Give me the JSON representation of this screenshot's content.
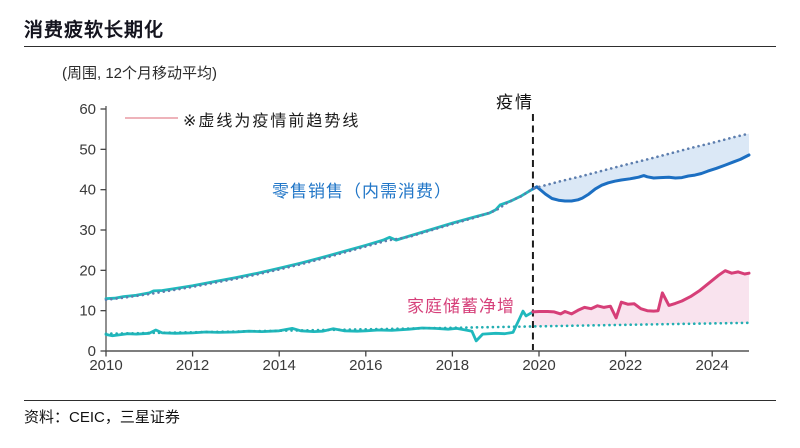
{
  "page": {
    "title": "消费疲软长期化",
    "source": "资料：CEIC，三星证券"
  },
  "chart_data": {
    "type": "line",
    "title": "消费疲软长期化",
    "unit_label": "(周围, 12个月移动平均)",
    "note": "※虚线为疫情前趋势线",
    "pandemic_label": "疫情",
    "labels": {
      "retail": "零售销售（内需消费）",
      "savings": "家庭储蓄净增"
    },
    "x_ticks": [
      2010,
      2012,
      2014,
      2016,
      2018,
      2020,
      2022,
      2024
    ],
    "y_ticks": [
      0,
      10,
      20,
      30,
      40,
      50,
      60
    ],
    "x_range": [
      2009.8,
      2025.2
    ],
    "y_range": [
      0,
      60
    ],
    "pandemic_x": 2019.86,
    "colors": {
      "teal": "#1fb9bd",
      "blue": "#1c6fc2",
      "pink": "#d63f78",
      "retail_trend_dots": "#5d7eae",
      "savings_trend_dots": "#23aeb2",
      "blue_fill": "#dbe8f6",
      "pink_fill": "#f9e3ee",
      "dashed_line": "#1c1c1c",
      "axis": "#7e7e7e"
    },
    "series": [
      {
        "name": "零售销售（内需消费）疫情前",
        "color": "#1fb9bd",
        "style": "solid",
        "width": 2.8,
        "points": [
          [
            2010.0,
            13.0
          ],
          [
            2010.2,
            13.1
          ],
          [
            2010.4,
            13.5
          ],
          [
            2010.7,
            13.8
          ],
          [
            2011.0,
            14.4
          ],
          [
            2011.1,
            14.9
          ],
          [
            2011.3,
            15.0
          ],
          [
            2011.6,
            15.5
          ],
          [
            2012.0,
            16.2
          ],
          [
            2012.5,
            17.2
          ],
          [
            2013.0,
            18.2
          ],
          [
            2013.5,
            19.3
          ],
          [
            2014.0,
            20.5
          ],
          [
            2014.5,
            21.8
          ],
          [
            2015.0,
            23.2
          ],
          [
            2015.5,
            24.7
          ],
          [
            2016.0,
            26.2
          ],
          [
            2016.4,
            27.5
          ],
          [
            2016.55,
            28.2
          ],
          [
            2016.7,
            27.5
          ],
          [
            2017.0,
            28.5
          ],
          [
            2017.5,
            30.1
          ],
          [
            2018.0,
            31.7
          ],
          [
            2018.5,
            33.2
          ],
          [
            2018.85,
            34.2
          ],
          [
            2019.0,
            35.0
          ],
          [
            2019.1,
            36.2
          ],
          [
            2019.35,
            37.2
          ],
          [
            2019.6,
            38.5
          ],
          [
            2019.86,
            40.2
          ]
        ]
      },
      {
        "name": "零售销售（内需消费）疫情后",
        "color": "#1c6fc2",
        "style": "solid",
        "width": 3,
        "points": [
          [
            2019.86,
            40.2
          ],
          [
            2019.95,
            40.7
          ],
          [
            2020.05,
            39.8
          ],
          [
            2020.15,
            38.9
          ],
          [
            2020.3,
            37.8
          ],
          [
            2020.45,
            37.4
          ],
          [
            2020.6,
            37.2
          ],
          [
            2020.75,
            37.2
          ],
          [
            2020.9,
            37.5
          ],
          [
            2021.0,
            37.9
          ],
          [
            2021.15,
            38.9
          ],
          [
            2021.3,
            40.2
          ],
          [
            2021.45,
            41.1
          ],
          [
            2021.6,
            41.7
          ],
          [
            2021.75,
            42.1
          ],
          [
            2021.9,
            42.4
          ],
          [
            2022.1,
            42.7
          ],
          [
            2022.3,
            43.1
          ],
          [
            2022.42,
            43.5
          ],
          [
            2022.5,
            43.2
          ],
          [
            2022.65,
            42.9
          ],
          [
            2022.8,
            43.0
          ],
          [
            2023.0,
            43.1
          ],
          [
            2023.15,
            42.9
          ],
          [
            2023.3,
            43.0
          ],
          [
            2023.45,
            43.4
          ],
          [
            2023.6,
            43.6
          ],
          [
            2023.75,
            44.0
          ],
          [
            2023.9,
            44.6
          ],
          [
            2024.1,
            45.3
          ],
          [
            2024.3,
            46.1
          ],
          [
            2024.5,
            46.9
          ],
          [
            2024.65,
            47.5
          ],
          [
            2024.85,
            48.6
          ]
        ]
      },
      {
        "name": "零售销售疫情前趋势线",
        "color": "#5d7eae",
        "style": "dotted",
        "width": 2.6,
        "points": [
          [
            2010.0,
            12.7
          ],
          [
            2010.4,
            13.2
          ],
          [
            2011.0,
            14.1
          ],
          [
            2011.5,
            15.0
          ],
          [
            2012.0,
            15.9
          ],
          [
            2012.5,
            16.9
          ],
          [
            2013.0,
            17.9
          ],
          [
            2013.5,
            19.0
          ],
          [
            2014.0,
            20.2
          ],
          [
            2014.5,
            21.5
          ],
          [
            2015.0,
            22.9
          ],
          [
            2015.5,
            24.4
          ],
          [
            2016.0,
            25.9
          ],
          [
            2016.5,
            27.4
          ],
          [
            2017.0,
            28.3
          ],
          [
            2017.5,
            29.9
          ],
          [
            2018.0,
            31.5
          ],
          [
            2018.5,
            33.0
          ],
          [
            2019.0,
            34.8
          ],
          [
            2019.3,
            37.0
          ],
          [
            2019.6,
            38.4
          ],
          [
            2019.86,
            40.3
          ],
          [
            2020.5,
            42.1
          ],
          [
            2021.0,
            43.4
          ],
          [
            2021.5,
            44.8
          ],
          [
            2022.0,
            46.2
          ],
          [
            2022.5,
            47.5
          ],
          [
            2023.0,
            48.9
          ],
          [
            2023.5,
            50.3
          ],
          [
            2024.0,
            51.6
          ],
          [
            2024.5,
            53.0
          ],
          [
            2024.85,
            53.9
          ]
        ]
      },
      {
        "name": "家庭储蓄净增疫情前",
        "color": "#1fb9bd",
        "style": "solid",
        "width": 2.8,
        "points": [
          [
            2010.0,
            4.1
          ],
          [
            2010.15,
            3.8
          ],
          [
            2010.3,
            4.0
          ],
          [
            2010.5,
            4.3
          ],
          [
            2010.7,
            4.2
          ],
          [
            2011.0,
            4.4
          ],
          [
            2011.15,
            5.2
          ],
          [
            2011.3,
            4.5
          ],
          [
            2011.6,
            4.4
          ],
          [
            2012.0,
            4.5
          ],
          [
            2012.3,
            4.7
          ],
          [
            2012.6,
            4.6
          ],
          [
            2013.0,
            4.7
          ],
          [
            2013.3,
            4.9
          ],
          [
            2013.6,
            4.8
          ],
          [
            2014.0,
            5.0
          ],
          [
            2014.3,
            5.6
          ],
          [
            2014.5,
            5.0
          ],
          [
            2014.8,
            4.8
          ],
          [
            2015.0,
            4.9
          ],
          [
            2015.25,
            5.5
          ],
          [
            2015.5,
            5.0
          ],
          [
            2015.8,
            4.9
          ],
          [
            2016.0,
            5.0
          ],
          [
            2016.3,
            5.2
          ],
          [
            2016.6,
            5.1
          ],
          [
            2017.0,
            5.4
          ],
          [
            2017.3,
            5.7
          ],
          [
            2017.6,
            5.6
          ],
          [
            2017.9,
            5.4
          ],
          [
            2018.1,
            5.6
          ],
          [
            2018.35,
            5.1
          ],
          [
            2018.45,
            4.9
          ],
          [
            2018.55,
            2.5
          ],
          [
            2018.7,
            4.2
          ],
          [
            2019.0,
            4.4
          ],
          [
            2019.2,
            4.3
          ],
          [
            2019.4,
            4.6
          ],
          [
            2019.55,
            8.0
          ],
          [
            2019.63,
            9.9
          ],
          [
            2019.7,
            8.7
          ],
          [
            2019.86,
            9.7
          ]
        ]
      },
      {
        "name": "家庭储蓄净增疫情后",
        "color": "#d63f78",
        "style": "solid",
        "width": 3,
        "points": [
          [
            2019.86,
            9.7
          ],
          [
            2020.0,
            9.8
          ],
          [
            2020.2,
            9.8
          ],
          [
            2020.35,
            9.7
          ],
          [
            2020.5,
            9.2
          ],
          [
            2020.6,
            9.8
          ],
          [
            2020.75,
            9.2
          ],
          [
            2020.9,
            10.1
          ],
          [
            2021.05,
            10.8
          ],
          [
            2021.2,
            10.5
          ],
          [
            2021.35,
            11.2
          ],
          [
            2021.5,
            10.8
          ],
          [
            2021.65,
            11.1
          ],
          [
            2021.78,
            8.2
          ],
          [
            2021.9,
            12.1
          ],
          [
            2022.05,
            11.6
          ],
          [
            2022.2,
            11.7
          ],
          [
            2022.35,
            10.5
          ],
          [
            2022.5,
            10.0
          ],
          [
            2022.65,
            9.9
          ],
          [
            2022.75,
            10.0
          ],
          [
            2022.85,
            14.4
          ],
          [
            2023.0,
            11.3
          ],
          [
            2023.15,
            11.8
          ],
          [
            2023.3,
            12.4
          ],
          [
            2023.5,
            13.5
          ],
          [
            2023.7,
            14.9
          ],
          [
            2023.85,
            16.2
          ],
          [
            2024.0,
            17.5
          ],
          [
            2024.15,
            18.8
          ],
          [
            2024.3,
            19.9
          ],
          [
            2024.45,
            19.3
          ],
          [
            2024.6,
            19.6
          ],
          [
            2024.75,
            19.1
          ],
          [
            2024.85,
            19.3
          ]
        ]
      },
      {
        "name": "家庭储蓄疫情前趋势线",
        "color": "#23aeb2",
        "style": "dotted",
        "width": 2.6,
        "points": [
          [
            2010.0,
            4.3
          ],
          [
            2015.0,
            5.2
          ],
          [
            2019.86,
            6.1
          ],
          [
            2022.0,
            6.5
          ],
          [
            2024.85,
            7.0
          ]
        ]
      }
    ],
    "fills": [
      {
        "between": [
          2,
          1
        ],
        "from_x": 2019.86,
        "color": "#dbe8f6"
      },
      {
        "between": [
          4,
          5
        ],
        "from_x": 2019.86,
        "color": "#f9e3ee"
      }
    ]
  }
}
